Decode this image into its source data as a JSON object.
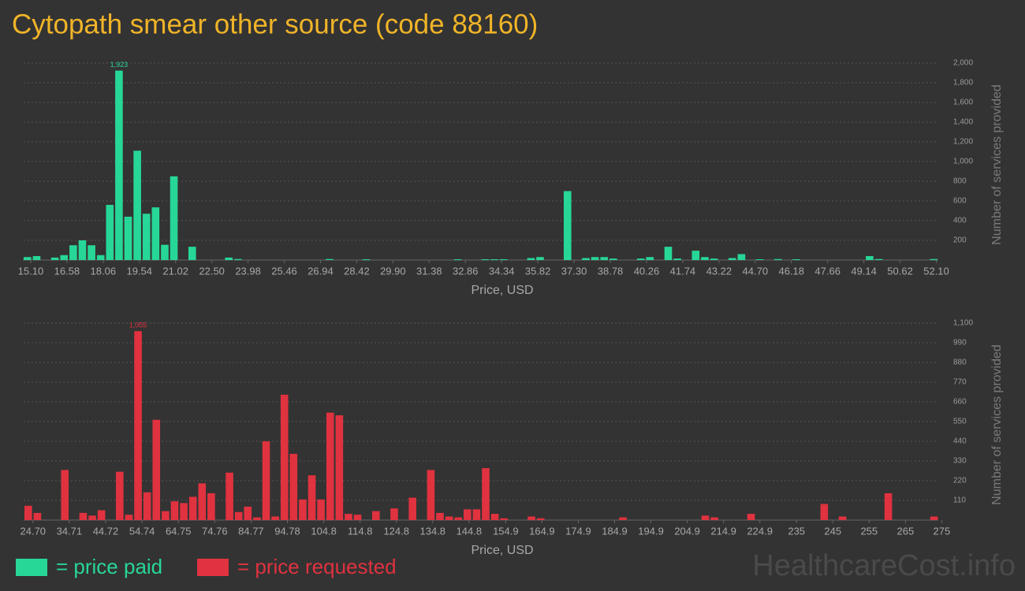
{
  "title": "Cytopath smear other source (code 88160)",
  "chart_data": [
    {
      "type": "histogram",
      "color": "#27d797",
      "grid": true,
      "xlabel": "Price, USD",
      "ylabel": "Number of services provided",
      "bins": [
        14.78,
        15.154,
        15.528,
        15.902,
        16.276,
        16.65,
        17.024,
        17.398,
        17.772,
        18.146,
        18.52,
        18.894,
        19.268,
        19.642,
        20.016,
        20.39,
        20.764,
        21.138,
        21.512,
        21.886,
        22.26,
        22.634,
        23.008,
        23.382,
        23.756,
        24.13,
        24.504,
        24.878,
        25.252,
        25.626,
        26.0,
        26.374,
        26.748,
        27.122,
        27.496,
        27.87,
        28.244,
        28.618,
        28.992,
        29.366,
        29.74,
        30.114,
        30.488,
        30.862,
        31.236,
        31.61,
        31.984,
        32.358,
        32.732,
        33.106,
        33.48,
        33.854,
        34.228,
        34.602,
        34.976,
        35.35,
        35.724,
        36.098,
        36.472,
        36.846,
        37.22,
        37.594,
        37.968,
        38.342,
        38.716,
        39.09,
        39.464,
        39.838,
        40.212,
        40.586,
        40.96,
        41.334,
        41.708,
        42.082,
        42.456,
        42.83,
        43.204,
        43.578,
        43.952,
        44.326,
        44.7,
        45.074,
        45.448,
        45.822,
        46.196,
        46.57,
        46.944,
        47.318,
        47.692,
        48.066,
        48.44,
        48.814,
        49.188,
        49.562,
        49.936,
        50.31,
        50.684,
        51.058,
        51.432,
        51.806,
        52.18
      ],
      "values": [
        30,
        40,
        0,
        25,
        50,
        150,
        200,
        150,
        50,
        560,
        1923,
        440,
        1110,
        470,
        535,
        155,
        850,
        0,
        135,
        0,
        0,
        0,
        25,
        10,
        0,
        0,
        0,
        0,
        0,
        0,
        0,
        0,
        0,
        10,
        0,
        0,
        0,
        8,
        0,
        0,
        0,
        0,
        0,
        0,
        0,
        0,
        0,
        8,
        0,
        0,
        8,
        8,
        8,
        0,
        0,
        20,
        30,
        0,
        0,
        700,
        0,
        20,
        30,
        30,
        15,
        0,
        0,
        15,
        30,
        0,
        135,
        15,
        0,
        95,
        30,
        15,
        0,
        20,
        60,
        0,
        8,
        0,
        10,
        0,
        8,
        0,
        0,
        0,
        0,
        0,
        0,
        0,
        40,
        10,
        0,
        0,
        0,
        0,
        0,
        10
      ],
      "value_labels": [
        null,
        null,
        null,
        null,
        null,
        null,
        null,
        null,
        null,
        null,
        "1,923",
        null,
        null,
        null,
        null,
        null,
        null,
        null,
        null,
        null,
        null,
        null,
        null,
        null,
        null,
        null,
        null,
        null,
        null,
        null,
        null,
        null,
        null,
        null,
        null,
        null,
        null,
        null,
        null,
        null,
        null,
        null,
        null,
        null,
        null,
        null,
        null,
        null,
        null,
        null,
        null,
        null,
        null,
        null,
        null,
        null,
        null,
        null,
        null,
        null,
        null,
        null,
        null,
        null,
        null,
        null,
        null,
        null,
        null,
        null,
        null,
        null,
        null,
        null,
        null,
        null,
        null,
        null,
        null,
        null,
        null,
        null,
        null,
        null,
        null,
        null,
        null,
        null,
        null,
        null,
        null,
        null,
        null,
        null,
        null,
        null,
        null,
        null,
        null,
        null
      ],
      "xlim": [
        14.78,
        52.18
      ],
      "ylim": [
        0,
        2000
      ],
      "xticks": [
        {
          "value": 15.1,
          "label": "15.10"
        },
        16.58,
        18.06,
        19.54,
        21.02,
        {
          "value": 22.5,
          "label": "22.50"
        },
        23.98,
        25.46,
        26.94,
        28.42,
        {
          "value": 29.9,
          "label": "29.90"
        },
        31.38,
        32.86,
        34.34,
        35.82,
        {
          "value": 37.3,
          "label": "37.30"
        },
        38.78,
        40.26,
        41.74,
        43.22,
        {
          "value": 44.7,
          "label": "44.70"
        },
        46.18,
        47.66,
        49.14,
        50.62,
        {
          "value": 52.1,
          "label": "52.10"
        }
      ],
      "yticks": [
        200,
        400,
        600,
        800,
        {
          "value": 1000,
          "label": "1,000"
        },
        {
          "value": 1200,
          "label": "1,200"
        },
        {
          "value": 1400,
          "label": "1,400"
        },
        {
          "value": 1600,
          "label": "1,600"
        },
        {
          "value": 1800,
          "label": "1,800"
        },
        {
          "value": 2000,
          "label": "2,000"
        }
      ]
    },
    {
      "type": "histogram",
      "color": "#e0323f",
      "grid": true,
      "xlabel": "Price, USD",
      "ylabel": "Number of services provided",
      "bins": [
        22.14,
        24.66,
        27.18,
        29.7,
        32.22,
        34.74,
        37.26,
        39.78,
        42.3,
        44.82,
        47.34,
        49.86,
        52.38,
        54.9,
        57.42,
        59.94,
        62.46,
        64.98,
        67.5,
        70.02,
        72.54,
        75.06,
        77.58,
        80.1,
        82.62,
        85.14,
        87.66,
        90.18,
        92.7,
        95.22,
        97.74,
        100.26,
        102.78,
        105.3,
        107.82,
        110.34,
        112.86,
        115.38,
        117.9,
        120.42,
        122.94,
        125.46,
        127.98,
        130.5,
        133.02,
        135.54,
        138.06,
        140.58,
        143.1,
        145.62,
        148.14,
        150.66,
        153.18,
        155.7,
        158.22,
        160.74,
        163.26,
        165.78,
        168.3,
        170.82,
        173.34,
        175.86,
        178.38,
        180.9,
        183.42,
        185.94,
        188.46,
        190.98,
        193.5,
        196.02,
        198.54,
        201.06,
        203.58,
        206.1,
        208.62,
        211.14,
        213.66,
        216.18,
        218.7,
        221.22,
        223.74,
        226.26,
        228.78,
        231.3,
        233.82,
        236.34,
        238.86,
        241.38,
        243.9,
        246.42,
        248.94,
        251.46,
        253.98,
        256.5,
        259.02,
        261.54,
        264.06,
        266.58,
        269.1,
        271.62,
        274.14
      ],
      "values": [
        80,
        40,
        0,
        0,
        280,
        0,
        40,
        25,
        55,
        0,
        270,
        30,
        1055,
        155,
        560,
        50,
        105,
        95,
        130,
        205,
        150,
        0,
        265,
        45,
        75,
        15,
        440,
        20,
        700,
        370,
        115,
        250,
        115,
        600,
        585,
        35,
        30,
        0,
        50,
        0,
        65,
        0,
        125,
        0,
        280,
        40,
        20,
        15,
        60,
        60,
        290,
        35,
        10,
        0,
        0,
        20,
        10,
        0,
        0,
        0,
        0,
        0,
        0,
        0,
        0,
        15,
        0,
        0,
        0,
        0,
        0,
        0,
        0,
        0,
        25,
        15,
        0,
        0,
        0,
        35,
        0,
        0,
        0,
        0,
        0,
        0,
        0,
        90,
        0,
        20,
        0,
        0,
        0,
        0,
        150,
        0,
        0,
        0,
        0,
        20
      ],
      "value_labels": [
        null,
        null,
        null,
        null,
        null,
        null,
        null,
        null,
        null,
        null,
        null,
        null,
        "1,055",
        null,
        null,
        null,
        null,
        null,
        null,
        null,
        null,
        null,
        null,
        null,
        null,
        null,
        null,
        null,
        null,
        null,
        null,
        null,
        null,
        null,
        null,
        null,
        null,
        null,
        null,
        null,
        null,
        null,
        null,
        null,
        null,
        null,
        null,
        null,
        null,
        null,
        null,
        null,
        null,
        null,
        null,
        null,
        null,
        null,
        null,
        null,
        null,
        null,
        null,
        null,
        null,
        null,
        null,
        null,
        null,
        null,
        null,
        null,
        null,
        null,
        null,
        null,
        null,
        null,
        null,
        null,
        null,
        null,
        null,
        null,
        null,
        null,
        null,
        null,
        null,
        null,
        null,
        null,
        null,
        null,
        null,
        null,
        null,
        null,
        null,
        null
      ],
      "xlim": [
        22.14,
        276
      ],
      "ylim": [
        0,
        1100
      ],
      "xticks": [
        {
          "value": 24.7,
          "label": "24.70"
        },
        34.71,
        44.72,
        54.74,
        64.75,
        74.76,
        84.77,
        94.78,
        104.8,
        114.8,
        124.8,
        134.8,
        144.8,
        154.9,
        164.9,
        174.9,
        184.9,
        194.9,
        204.9,
        214.9,
        224.9,
        235,
        245,
        255,
        265,
        275
      ],
      "yticks": [
        110,
        220,
        330,
        440,
        550,
        660,
        770,
        880,
        990,
        {
          "value": 1100,
          "label": "1,100"
        }
      ]
    }
  ],
  "legend": [
    {
      "label": "= price paid",
      "color": "#27d797"
    },
    {
      "label": "= price requested",
      "color": "#e0323f"
    }
  ],
  "watermark": "HealthcareCost.info"
}
